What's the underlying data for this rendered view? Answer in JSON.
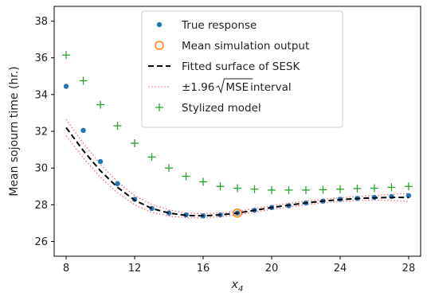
{
  "chart_data": {
    "type": "scatter",
    "xlabel": "x",
    "xlabel_subscript": "4",
    "ylabel": "Mean sojourn time (hr.)",
    "xlim": [
      7.3,
      28.7
    ],
    "ylim": [
      25.2,
      38.8
    ],
    "xticks": [
      8,
      12,
      16,
      20,
      24,
      28
    ],
    "yticks": [
      26,
      28,
      30,
      32,
      34,
      36,
      38
    ],
    "grid": false,
    "legend_position": "top-center",
    "series": [
      {
        "name": "True response",
        "kind": "points",
        "marker": "dot",
        "color": "#1f77b4",
        "x": [
          8,
          9,
          10,
          11,
          12,
          13,
          14,
          15,
          16,
          17,
          18,
          19,
          20,
          21,
          22,
          23,
          24,
          25,
          26,
          27,
          28
        ],
        "y": [
          34.45,
          32.05,
          30.35,
          29.15,
          28.3,
          27.8,
          27.55,
          27.45,
          27.4,
          27.45,
          27.55,
          27.7,
          27.85,
          27.95,
          28.1,
          28.2,
          28.3,
          28.35,
          28.4,
          28.45,
          28.5
        ]
      },
      {
        "name": "Mean simulation output",
        "kind": "points",
        "marker": "circle-open",
        "color": "#ff7f0e",
        "x": [
          18
        ],
        "y": [
          27.55
        ]
      },
      {
        "name": "Fitted surface of SESK",
        "kind": "line",
        "style": "dashed",
        "color": "#000000",
        "x": [
          8,
          9,
          10,
          11,
          12,
          13,
          14,
          15,
          16,
          17,
          18,
          19,
          20,
          21,
          22,
          23,
          24,
          25,
          26,
          27,
          28
        ],
        "y": [
          32.2,
          30.95,
          29.85,
          28.95,
          28.25,
          27.8,
          27.55,
          27.42,
          27.4,
          27.45,
          27.55,
          27.7,
          27.85,
          27.98,
          28.1,
          28.2,
          28.28,
          28.34,
          28.38,
          28.4,
          28.4
        ]
      },
      {
        "name_prefix": "±1.96",
        "name_radicand": "MSE",
        "name_suffix": " interval",
        "kind": "band",
        "style": "dotted",
        "color": "#e8707a",
        "x": [
          8,
          9,
          10,
          11,
          12,
          13,
          14,
          15,
          16,
          17,
          18,
          19,
          20,
          21,
          22,
          23,
          24,
          25,
          26,
          27,
          28
        ],
        "upper": [
          32.65,
          31.35,
          30.2,
          29.25,
          28.5,
          28.02,
          27.72,
          27.55,
          27.52,
          27.55,
          27.65,
          27.8,
          27.95,
          28.08,
          28.2,
          28.3,
          28.38,
          28.45,
          28.5,
          28.56,
          28.62
        ],
        "lower": [
          31.75,
          30.55,
          29.5,
          28.65,
          28.0,
          27.58,
          27.38,
          27.3,
          27.28,
          27.35,
          27.45,
          27.6,
          27.75,
          27.88,
          28.0,
          28.1,
          28.18,
          28.23,
          28.26,
          28.24,
          28.18
        ]
      },
      {
        "name": "Stylized model",
        "kind": "points",
        "marker": "plus",
        "color": "#2ca02c",
        "x": [
          8,
          9,
          10,
          11,
          12,
          13,
          14,
          15,
          16,
          17,
          18,
          19,
          20,
          21,
          22,
          23,
          24,
          25,
          26,
          27,
          28
        ],
        "y": [
          36.15,
          34.75,
          33.45,
          32.3,
          31.35,
          30.6,
          30.0,
          29.55,
          29.25,
          29.0,
          28.9,
          28.85,
          28.8,
          28.8,
          28.8,
          28.82,
          28.85,
          28.88,
          28.9,
          28.95,
          29.0
        ]
      }
    ]
  }
}
